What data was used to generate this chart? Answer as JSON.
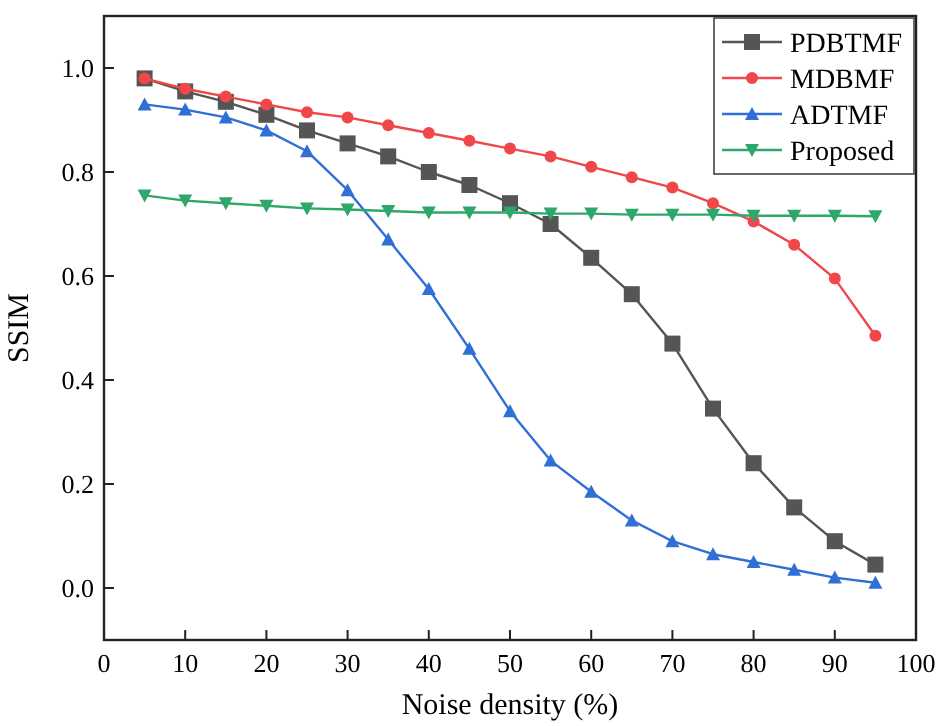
{
  "chart_data": {
    "type": "line",
    "xlabel": "Noise density (%)",
    "ylabel": "SSIM",
    "x": [
      5,
      10,
      15,
      20,
      25,
      30,
      35,
      40,
      45,
      50,
      55,
      60,
      65,
      70,
      75,
      80,
      85,
      90,
      95
    ],
    "xlim": [
      0,
      100
    ],
    "xticks": [
      0,
      10,
      20,
      30,
      40,
      50,
      60,
      70,
      80,
      90,
      100
    ],
    "ylim": [
      -0.1,
      1.1
    ],
    "yticks": [
      {
        "value": 0,
        "label": "0.0"
      },
      {
        "value": 0.2,
        "label": "0.2"
      },
      {
        "value": 0.4,
        "label": "0.4"
      },
      {
        "value": 0.6,
        "label": "0.6"
      },
      {
        "value": 0.8,
        "label": "0.8"
      },
      {
        "value": 1,
        "label": "1.0"
      }
    ],
    "legend": "top right",
    "grid": false,
    "line_style": "solid",
    "series": [
      {
        "name": "PDBTMF",
        "color": "#555555",
        "marker": "square",
        "values": [
          0.98,
          0.955,
          0.935,
          0.91,
          0.88,
          0.855,
          0.83,
          0.8,
          0.775,
          0.74,
          0.7,
          0.635,
          0.565,
          0.47,
          0.345,
          0.24,
          0.155,
          0.09,
          0.045
        ]
      },
      {
        "name": "MDBMF",
        "color": "#f0474a",
        "marker": "circle",
        "values": [
          0.98,
          0.96,
          0.945,
          0.93,
          0.915,
          0.905,
          0.89,
          0.875,
          0.86,
          0.845,
          0.83,
          0.81,
          0.79,
          0.77,
          0.74,
          0.705,
          0.66,
          0.595,
          0.485
        ]
      },
      {
        "name": "ADTMF",
        "color": "#2f6fd6",
        "marker": "triangle",
        "values": [
          0.93,
          0.92,
          0.905,
          0.88,
          0.84,
          0.765,
          0.67,
          0.575,
          0.46,
          0.34,
          0.245,
          0.185,
          0.13,
          0.09,
          0.065,
          0.05,
          0.035,
          0.02,
          0.01
        ]
      },
      {
        "name": "Proposed",
        "color": "#2ea86a",
        "marker": "triangle-down",
        "values": [
          0.755,
          0.745,
          0.74,
          0.735,
          0.73,
          0.728,
          0.725,
          0.722,
          0.722,
          0.722,
          0.72,
          0.72,
          0.718,
          0.718,
          0.718,
          0.716,
          0.716,
          0.716,
          0.715
        ]
      }
    ]
  }
}
